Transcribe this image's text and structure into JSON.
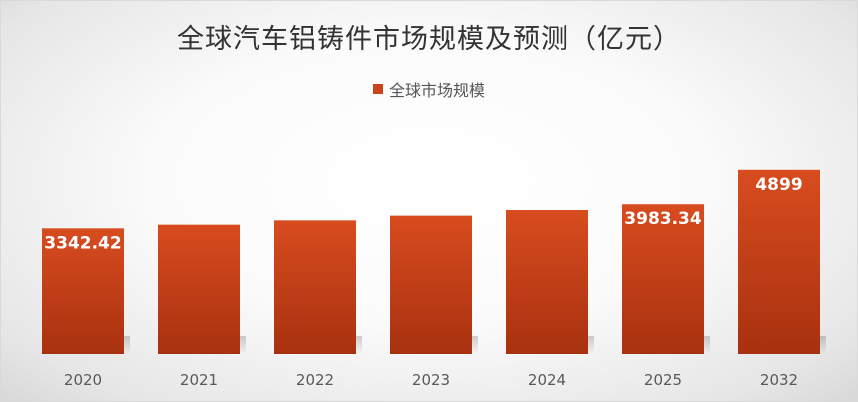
{
  "chart_data": {
    "type": "bar",
    "title": "全球汽车铝铸件市场规模及预测（亿元）",
    "categories": [
      "2020",
      "2021",
      "2022",
      "2023",
      "2024",
      "2025",
      "2032"
    ],
    "series": [
      {
        "name": "全球市场规模",
        "values": [
          3342.42,
          3440,
          3555,
          3680,
          3830,
          3983.34,
          4899
        ],
        "data_labels": [
          "3342.42",
          null,
          null,
          null,
          null,
          "3983.34",
          "4899"
        ]
      }
    ],
    "ylim": [
      0,
      5300
    ],
    "grid": false,
    "legend": "top",
    "colors": {
      "bar_top": "#d84c1f",
      "bar_bottom": "#a8310f",
      "label": "#ffffff",
      "axis_text": "#595959"
    }
  }
}
